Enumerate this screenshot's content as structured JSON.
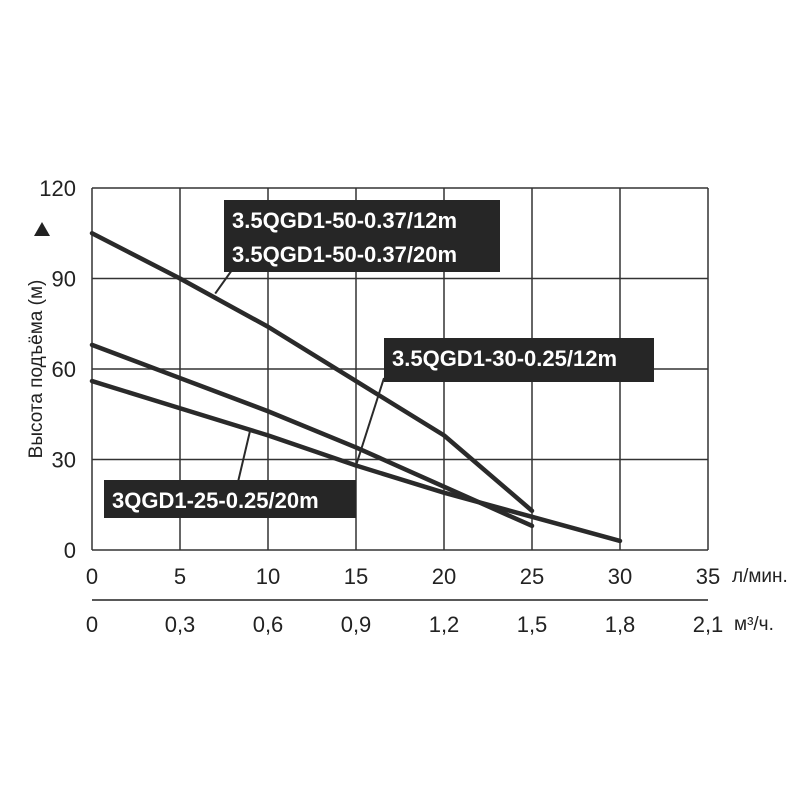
{
  "chart_data": {
    "type": "line",
    "ylabel": "Высота подъёма (м)",
    "ylim": [
      0,
      120
    ],
    "yticks": [
      "0",
      "30",
      "60",
      "90",
      "120"
    ],
    "yticks_values": [
      0,
      30,
      60,
      90,
      120
    ],
    "xlim": [
      0,
      35
    ],
    "xticks_lpm": [
      "0",
      "5",
      "10",
      "15",
      "20",
      "25",
      "30",
      "35"
    ],
    "xticks_lpm_values": [
      0,
      5,
      10,
      15,
      20,
      25,
      30,
      35
    ],
    "xunit_lpm": "л/мин.",
    "xticks_m3h": [
      "0",
      "0,3",
      "0,6",
      "0,9",
      "1,2",
      "1,5",
      "1,8",
      "2,1"
    ],
    "xunit_m3h": "м³/ч.",
    "grid": true,
    "series": [
      {
        "name": "3.5QGD1-50-0.37/12m\n3.5QGD1-50-0.37/20m",
        "label_lines": [
          "3.5QGD1-50-0.37/12m",
          "3.5QGD1-50-0.37/20m"
        ],
        "x": [
          0,
          5,
          10,
          15,
          20,
          25
        ],
        "y": [
          105,
          90,
          74,
          56,
          38,
          13
        ]
      },
      {
        "name": "3.5QGD1-30-0.25/12m",
        "label_lines": [
          "3.5QGD1-30-0.25/12m"
        ],
        "x": [
          0,
          5,
          10,
          15,
          20,
          25
        ],
        "y": [
          68,
          57,
          46,
          34,
          21,
          8
        ]
      },
      {
        "name": "3QGD1-25-0.25/20m",
        "label_lines": [
          "3QGD1-25-0.25/20m"
        ],
        "x": [
          0,
          5,
          10,
          15,
          20,
          25,
          30
        ],
        "y": [
          56,
          47,
          38,
          28,
          19,
          11,
          3
        ]
      }
    ]
  }
}
